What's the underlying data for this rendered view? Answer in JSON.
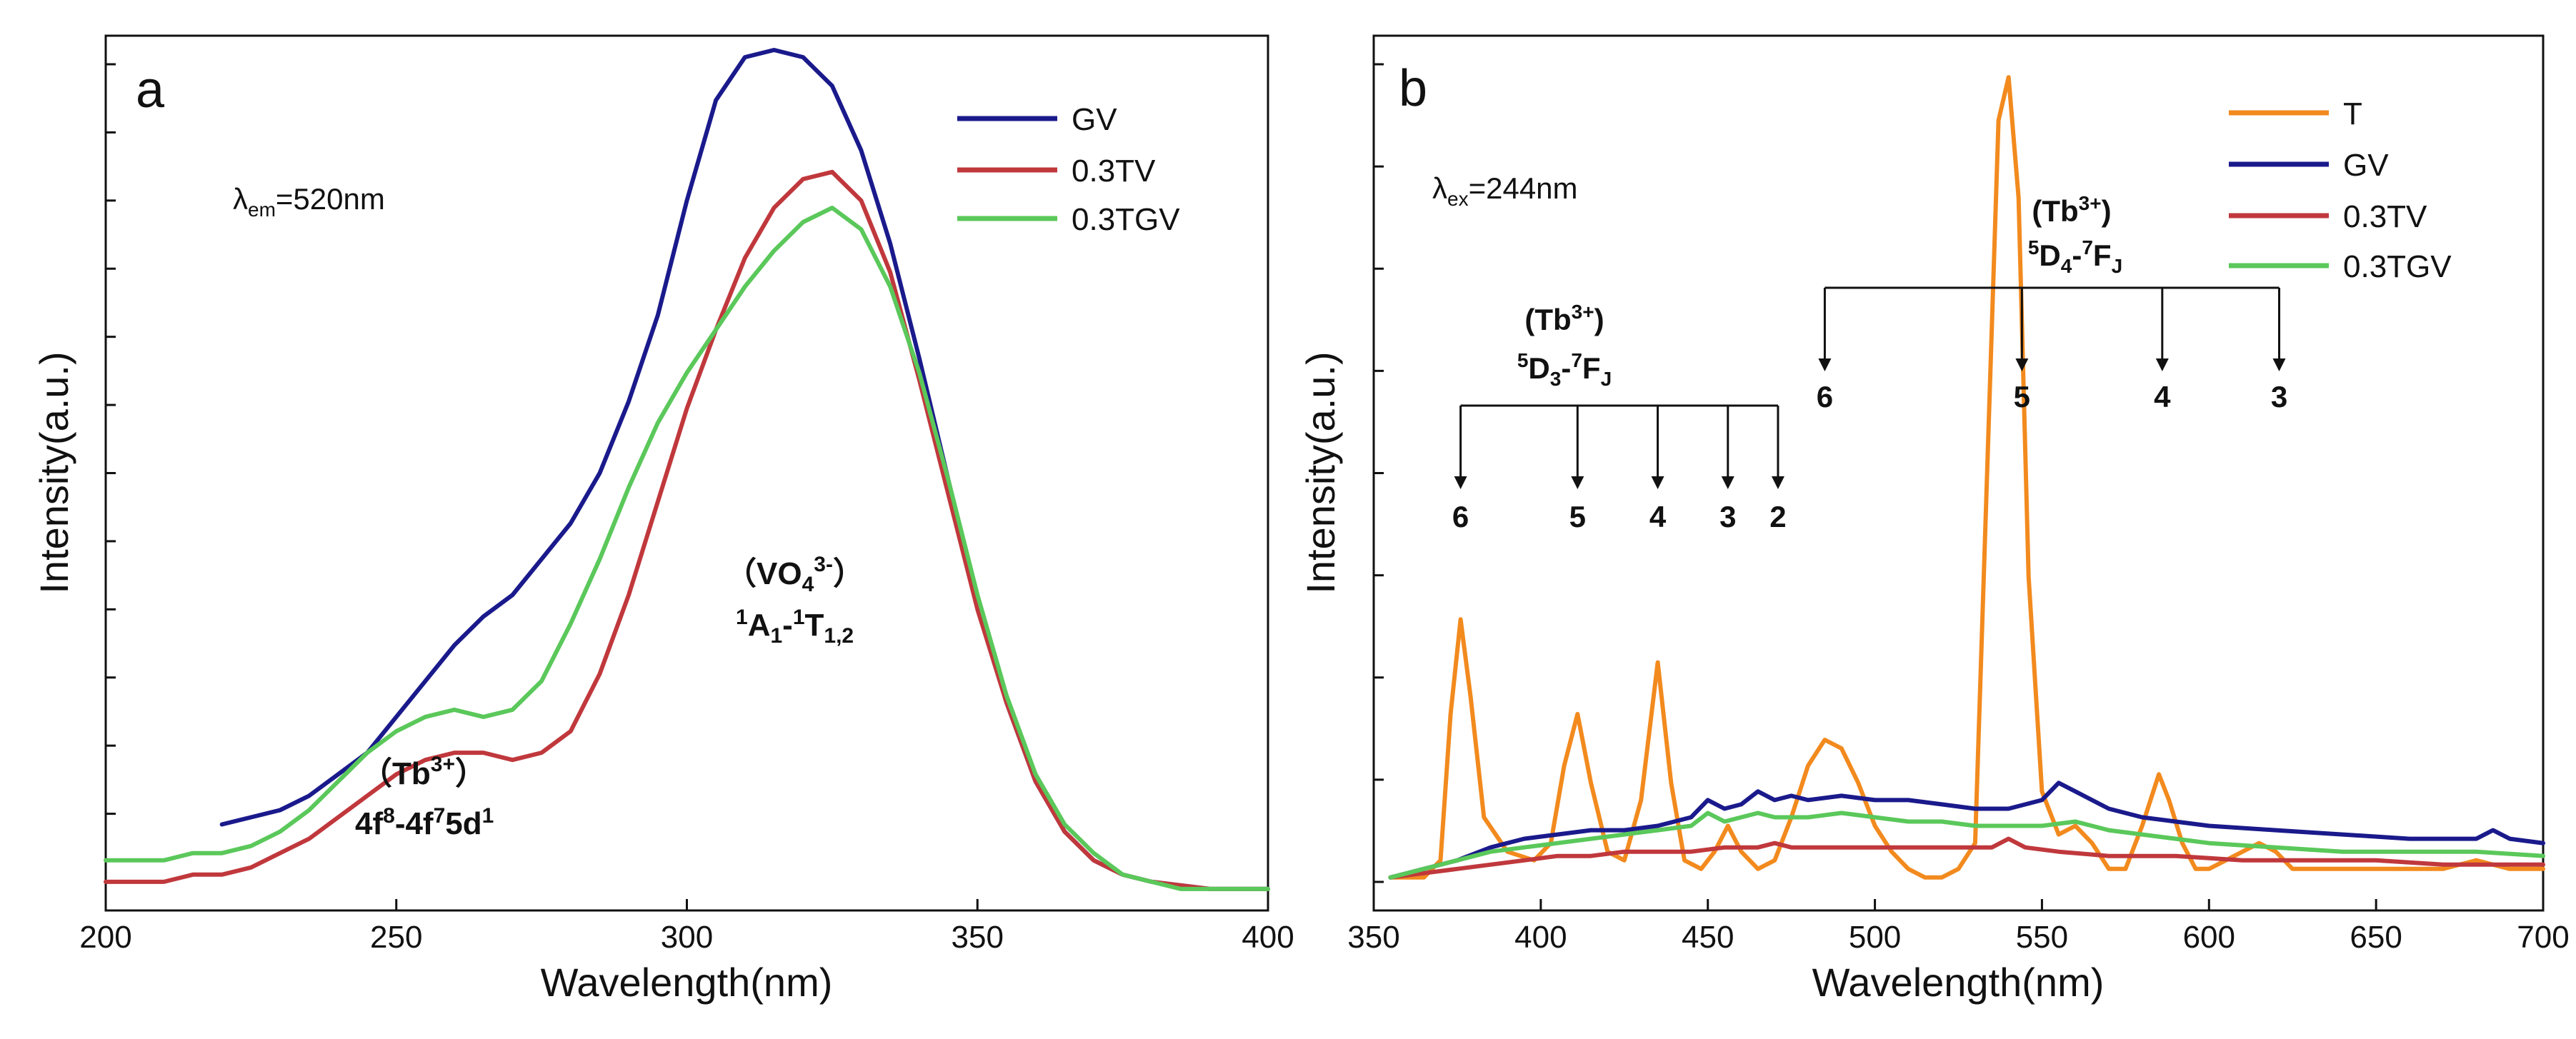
{
  "chart_data": [
    {
      "type": "line",
      "panel_label": "a",
      "title": "",
      "xlabel": "Wavelength(nm)",
      "ylabel": "Intensity(a.u.)",
      "xlim": [
        200,
        400
      ],
      "ylim": [
        0,
        1.2
      ],
      "x_ticks": [
        200,
        250,
        300,
        350,
        400
      ],
      "legend": [
        "GV",
        "0.3TV",
        "0.3TGV"
      ],
      "annotations": {
        "condition_prefix": "λ",
        "condition_sub": "em",
        "condition_value": "=520nm",
        "vo4_label": "（VO",
        "vo4_sub": "4",
        "vo4_sup": "3-",
        "vo4_close": "）",
        "vo4_transition": [
          "1",
          "A",
          "1",
          "-",
          "1",
          "T",
          "1,2"
        ],
        "tb_label": "（Tb",
        "tb_sup": "3+",
        "tb_close": "）",
        "tb_transition": [
          "4f",
          "8",
          "-4f",
          "7",
          "5d",
          "1"
        ]
      },
      "series": [
        {
          "name": "GV",
          "color": "#1a1a8c",
          "x": [
            220,
            225,
            230,
            235,
            240,
            245,
            250,
            255,
            260,
            265,
            270,
            275,
            280,
            285,
            290,
            295,
            300,
            305,
            310,
            315,
            320,
            325,
            330,
            335,
            340,
            345,
            350,
            355,
            360,
            365,
            370,
            375,
            380,
            385,
            390,
            395,
            400
          ],
          "y": [
            0.11,
            0.12,
            0.13,
            0.15,
            0.18,
            0.21,
            0.26,
            0.31,
            0.36,
            0.4,
            0.43,
            0.48,
            0.53,
            0.6,
            0.7,
            0.82,
            0.98,
            1.12,
            1.18,
            1.19,
            1.18,
            1.14,
            1.05,
            0.92,
            0.76,
            0.59,
            0.42,
            0.28,
            0.17,
            0.1,
            0.06,
            0.04,
            0.03,
            0.025,
            0.02,
            0.02,
            0.02
          ]
        },
        {
          "name": "0.3TV",
          "color": "#c0383c",
          "x": [
            200,
            205,
            210,
            215,
            220,
            225,
            230,
            235,
            240,
            245,
            250,
            255,
            260,
            265,
            270,
            275,
            280,
            285,
            290,
            295,
            300,
            305,
            310,
            315,
            320,
            325,
            330,
            335,
            340,
            345,
            350,
            355,
            360,
            365,
            370,
            375,
            380,
            385,
            390,
            395,
            400
          ],
          "y": [
            0.03,
            0.03,
            0.03,
            0.04,
            0.04,
            0.05,
            0.07,
            0.09,
            0.12,
            0.15,
            0.18,
            0.2,
            0.21,
            0.21,
            0.2,
            0.21,
            0.24,
            0.32,
            0.43,
            0.56,
            0.69,
            0.8,
            0.9,
            0.97,
            1.01,
            1.02,
            0.98,
            0.88,
            0.73,
            0.57,
            0.41,
            0.28,
            0.17,
            0.1,
            0.06,
            0.04,
            0.03,
            0.025,
            0.02,
            0.02,
            0.02
          ]
        },
        {
          "name": "0.3TGV",
          "color": "#5ac85a",
          "x": [
            200,
            205,
            210,
            215,
            220,
            225,
            230,
            235,
            240,
            245,
            250,
            255,
            260,
            265,
            270,
            275,
            280,
            285,
            290,
            295,
            300,
            305,
            310,
            315,
            320,
            325,
            330,
            335,
            340,
            345,
            350,
            355,
            360,
            365,
            370,
            375,
            380,
            385,
            390,
            395,
            400
          ],
          "y": [
            0.06,
            0.06,
            0.06,
            0.07,
            0.07,
            0.08,
            0.1,
            0.13,
            0.17,
            0.21,
            0.24,
            0.26,
            0.27,
            0.26,
            0.27,
            0.31,
            0.39,
            0.48,
            0.58,
            0.67,
            0.74,
            0.8,
            0.86,
            0.91,
            0.95,
            0.97,
            0.94,
            0.86,
            0.74,
            0.59,
            0.43,
            0.29,
            0.18,
            0.11,
            0.07,
            0.04,
            0.03,
            0.02,
            0.02,
            0.02,
            0.02
          ]
        }
      ]
    },
    {
      "type": "line",
      "panel_label": "b",
      "title": "",
      "xlabel": "Wavelength(nm)",
      "ylabel": "Intensity(a.u.)",
      "xlim": [
        350,
        700
      ],
      "ylim": [
        0,
        1.0
      ],
      "x_ticks": [
        350,
        400,
        450,
        500,
        550,
        600,
        650,
        700
      ],
      "legend": [
        "T",
        "GV",
        "0.3TV",
        "0.3TGV"
      ],
      "annotations": {
        "condition_prefix": "λ",
        "condition_sub": "ex",
        "condition_value": "=244nm",
        "d3_group_label": "(Tb",
        "d3_group_sup": "3+",
        "d3_group_close": ")",
        "d3_transition": [
          "5",
          "D",
          "3",
          "-",
          "7",
          "F",
          "J"
        ],
        "d4_group_label": "(Tb",
        "d4_group_sup": "3+",
        "d4_group_close": ")",
        "d4_transition": [
          "5",
          "D",
          "4",
          "-",
          "7",
          "F",
          "J"
        ],
        "d3_peaks": [
          {
            "x": 376,
            "label": "6"
          },
          {
            "x": 411,
            "label": "5"
          },
          {
            "x": 435,
            "label": "4"
          },
          {
            "x": 456,
            "label": "3"
          },
          {
            "x": 471,
            "label": "2"
          }
        ],
        "d4_peaks": [
          {
            "x": 485,
            "label": "6"
          },
          {
            "x": 544,
            "label": "5"
          },
          {
            "x": 586,
            "label": "4"
          },
          {
            "x": 621,
            "label": "3"
          }
        ]
      },
      "series": [
        {
          "name": "T",
          "color": "#f28a1e",
          "x": [
            355,
            360,
            365,
            370,
            373,
            376,
            379,
            383,
            390,
            398,
            403,
            407,
            411,
            415,
            420,
            425,
            430,
            435,
            439,
            443,
            448,
            452,
            456,
            460,
            465,
            470,
            475,
            480,
            485,
            490,
            495,
            500,
            505,
            510,
            515,
            520,
            525,
            530,
            534,
            537,
            540,
            543,
            546,
            550,
            555,
            560,
            565,
            570,
            575,
            580,
            585,
            588,
            592,
            596,
            600,
            605,
            610,
            615,
            620,
            625,
            630,
            640,
            650,
            660,
            670,
            680,
            690,
            700
          ],
          "y": [
            0.03,
            0.03,
            0.03,
            0.05,
            0.22,
            0.33,
            0.24,
            0.1,
            0.06,
            0.05,
            0.07,
            0.16,
            0.22,
            0.14,
            0.06,
            0.05,
            0.12,
            0.28,
            0.14,
            0.05,
            0.04,
            0.06,
            0.09,
            0.06,
            0.04,
            0.05,
            0.1,
            0.16,
            0.19,
            0.18,
            0.14,
            0.09,
            0.06,
            0.04,
            0.03,
            0.03,
            0.04,
            0.07,
            0.55,
            0.91,
            0.96,
            0.82,
            0.38,
            0.13,
            0.08,
            0.09,
            0.07,
            0.04,
            0.04,
            0.09,
            0.15,
            0.12,
            0.07,
            0.04,
            0.04,
            0.05,
            0.06,
            0.07,
            0.06,
            0.04,
            0.04,
            0.04,
            0.04,
            0.04,
            0.04,
            0.05,
            0.04,
            0.04
          ]
        },
        {
          "name": "GV",
          "color": "#1a1a8c",
          "x": [
            355,
            365,
            375,
            385,
            395,
            405,
            415,
            425,
            435,
            445,
            450,
            455,
            460,
            465,
            470,
            475,
            480,
            490,
            500,
            510,
            520,
            530,
            540,
            550,
            555,
            560,
            565,
            570,
            580,
            590,
            600,
            620,
            640,
            660,
            680,
            685,
            690,
            700
          ],
          "y": [
            0.03,
            0.04,
            0.05,
            0.065,
            0.075,
            0.08,
            0.085,
            0.085,
            0.09,
            0.1,
            0.12,
            0.11,
            0.115,
            0.13,
            0.12,
            0.125,
            0.12,
            0.125,
            0.12,
            0.12,
            0.115,
            0.11,
            0.11,
            0.12,
            0.14,
            0.13,
            0.12,
            0.11,
            0.1,
            0.095,
            0.09,
            0.085,
            0.08,
            0.075,
            0.075,
            0.085,
            0.075,
            0.07
          ]
        },
        {
          "name": "0.3TV",
          "color": "#c0383c",
          "x": [
            355,
            365,
            375,
            385,
            395,
            405,
            415,
            425,
            435,
            445,
            455,
            465,
            470,
            475,
            485,
            500,
            520,
            535,
            540,
            545,
            555,
            570,
            590,
            610,
            630,
            650,
            670,
            690,
            700
          ],
          "y": [
            0.03,
            0.035,
            0.04,
            0.045,
            0.05,
            0.055,
            0.055,
            0.06,
            0.06,
            0.06,
            0.065,
            0.065,
            0.07,
            0.065,
            0.065,
            0.065,
            0.065,
            0.065,
            0.075,
            0.065,
            0.06,
            0.055,
            0.055,
            0.05,
            0.05,
            0.05,
            0.045,
            0.045,
            0.045
          ]
        },
        {
          "name": "0.3TGV",
          "color": "#5ac85a",
          "x": [
            355,
            365,
            375,
            385,
            395,
            405,
            415,
            425,
            435,
            445,
            450,
            455,
            460,
            465,
            470,
            480,
            490,
            500,
            510,
            520,
            530,
            540,
            550,
            560,
            570,
            580,
            590,
            600,
            620,
            640,
            660,
            680,
            700
          ],
          "y": [
            0.03,
            0.04,
            0.05,
            0.06,
            0.065,
            0.07,
            0.075,
            0.08,
            0.085,
            0.09,
            0.105,
            0.095,
            0.1,
            0.105,
            0.1,
            0.1,
            0.105,
            0.1,
            0.095,
            0.095,
            0.09,
            0.09,
            0.09,
            0.095,
            0.085,
            0.08,
            0.075,
            0.07,
            0.065,
            0.06,
            0.06,
            0.06,
            0.055
          ]
        }
      ]
    }
  ]
}
